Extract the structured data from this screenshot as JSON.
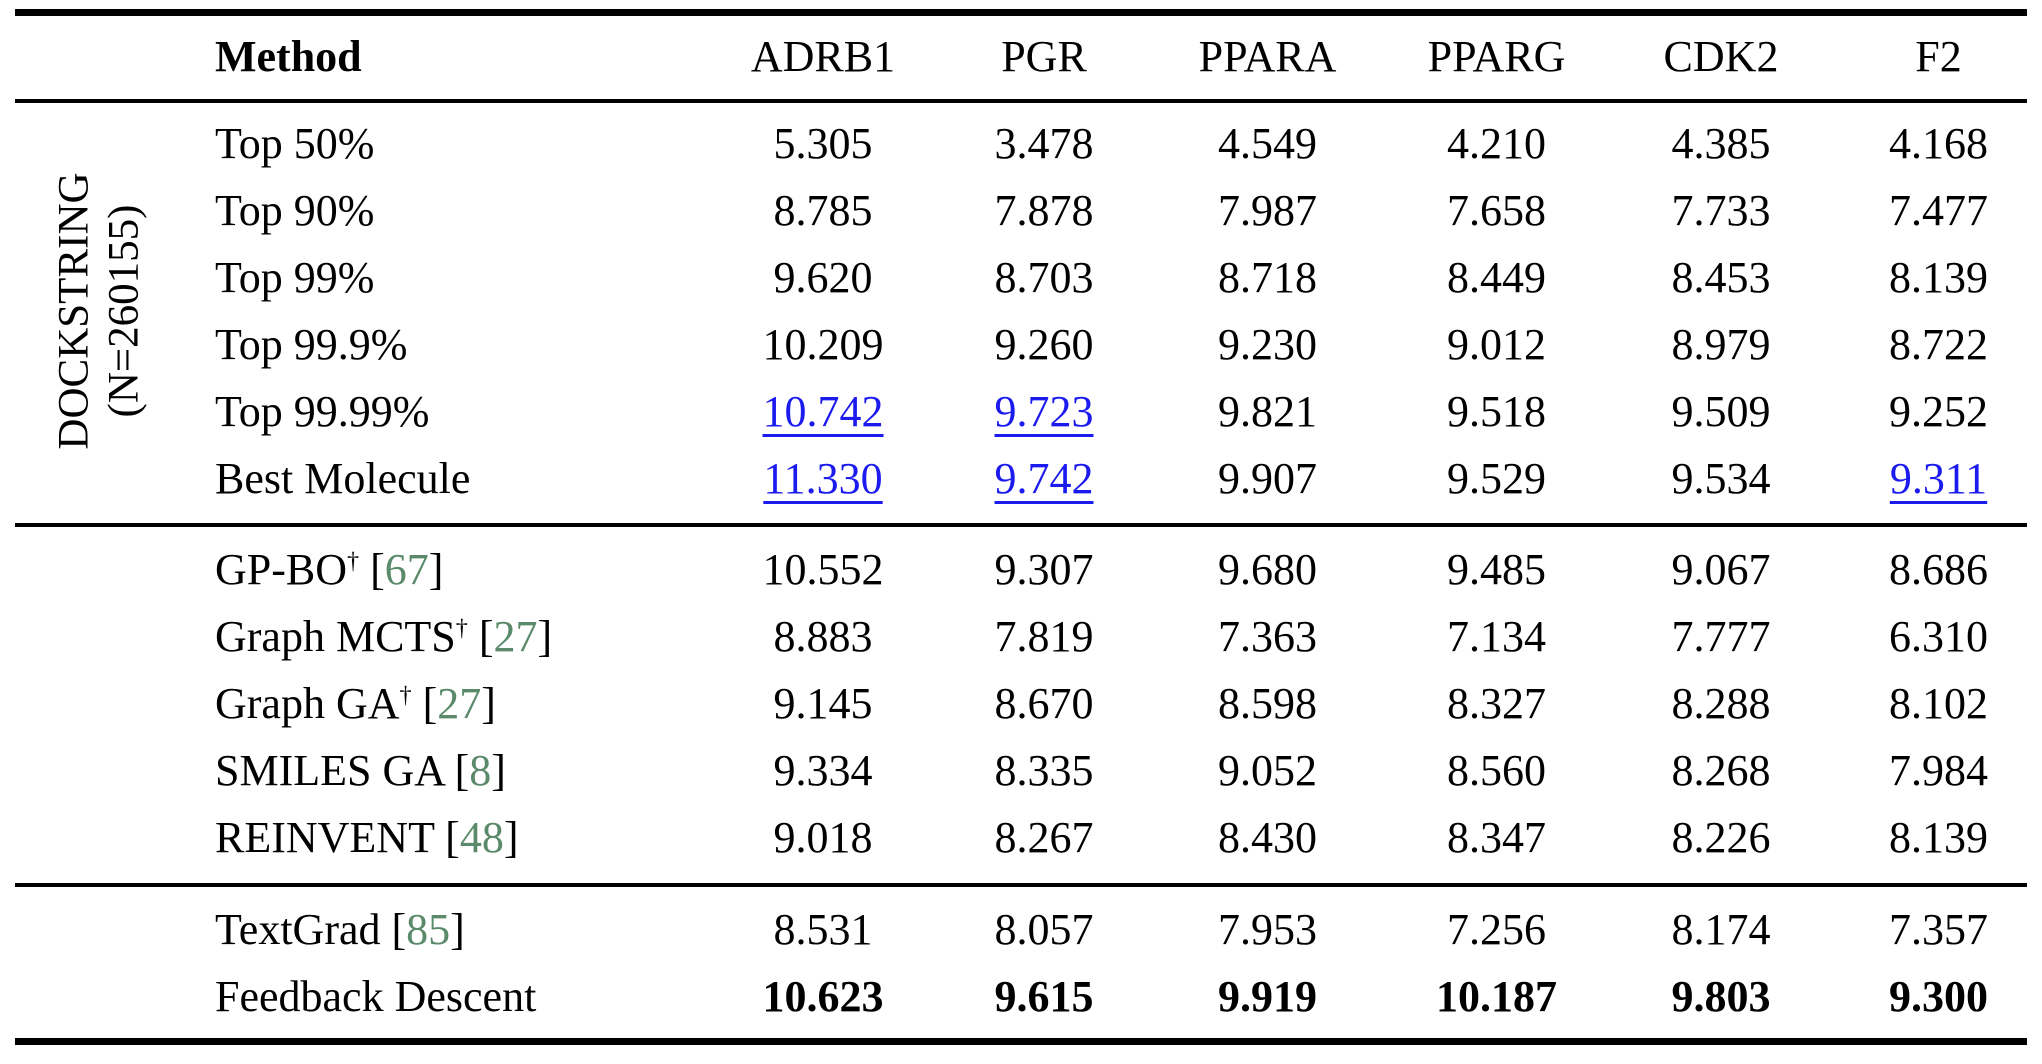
{
  "colors": {
    "link_blue": "#1b1bf0",
    "citation_green": "#5a8a6a",
    "text_black": "#000000",
    "background": "#ffffff"
  },
  "header": {
    "method": "Method",
    "targets": [
      "ADRB1",
      "PGR",
      "PPARA",
      "PPARG",
      "CDK2",
      "F2"
    ]
  },
  "row_group_label": {
    "line1": "DOCKSTRING",
    "line2": "(N=260155)"
  },
  "dagger_symbol": "†",
  "sections": [
    {
      "id": "dockstring-percentiles",
      "rows": [
        {
          "method": {
            "label": "Top 50%"
          },
          "values": [
            "5.305",
            "3.478",
            "4.549",
            "4.210",
            "4.385",
            "4.168"
          ]
        },
        {
          "method": {
            "label": "Top 90%"
          },
          "values": [
            "8.785",
            "7.878",
            "7.987",
            "7.658",
            "7.733",
            "7.477"
          ]
        },
        {
          "method": {
            "label": "Top 99%"
          },
          "values": [
            "9.620",
            "8.703",
            "8.718",
            "8.449",
            "8.453",
            "8.139"
          ]
        },
        {
          "method": {
            "label": "Top 99.9%"
          },
          "values": [
            "10.209",
            "9.260",
            "9.230",
            "9.012",
            "8.979",
            "8.722"
          ]
        },
        {
          "method": {
            "label": "Top 99.99%"
          },
          "values": [
            "10.742",
            "9.723",
            "9.821",
            "9.518",
            "9.509",
            "9.252"
          ],
          "underlined_blue_cols": [
            0,
            1
          ]
        },
        {
          "method": {
            "label": "Best Molecule"
          },
          "values": [
            "11.330",
            "9.742",
            "9.907",
            "9.529",
            "9.534",
            "9.311"
          ],
          "underlined_blue_cols": [
            0,
            1,
            5
          ]
        }
      ]
    },
    {
      "id": "baseline-methods",
      "rows": [
        {
          "method": {
            "label": "GP-BO",
            "dagger": true,
            "citation": "67"
          },
          "values": [
            "10.552",
            "9.307",
            "9.680",
            "9.485",
            "9.067",
            "8.686"
          ]
        },
        {
          "method": {
            "label": "Graph MCTS",
            "dagger": true,
            "citation": "27"
          },
          "values": [
            "8.883",
            "7.819",
            "7.363",
            "7.134",
            "7.777",
            "6.310"
          ]
        },
        {
          "method": {
            "label": "Graph GA",
            "dagger": true,
            "citation": "27"
          },
          "values": [
            "9.145",
            "8.670",
            "8.598",
            "8.327",
            "8.288",
            "8.102"
          ]
        },
        {
          "method": {
            "label": "SMILES GA",
            "citation": "8"
          },
          "values": [
            "9.334",
            "8.335",
            "9.052",
            "8.560",
            "8.268",
            "7.984"
          ]
        },
        {
          "method": {
            "label": "REINVENT",
            "citation": "48"
          },
          "values": [
            "9.018",
            "8.267",
            "8.430",
            "8.347",
            "8.226",
            "8.139"
          ]
        }
      ]
    },
    {
      "id": "text-optimization-methods",
      "rows": [
        {
          "method": {
            "label": "TextGrad",
            "citation": "85"
          },
          "values": [
            "8.531",
            "8.057",
            "7.953",
            "7.256",
            "8.174",
            "7.357"
          ]
        },
        {
          "method": {
            "label": "Feedback Descent"
          },
          "bold_values": true,
          "values": [
            "10.623",
            "9.615",
            "9.919",
            "10.187",
            "9.803",
            "9.300"
          ]
        }
      ]
    }
  ]
}
